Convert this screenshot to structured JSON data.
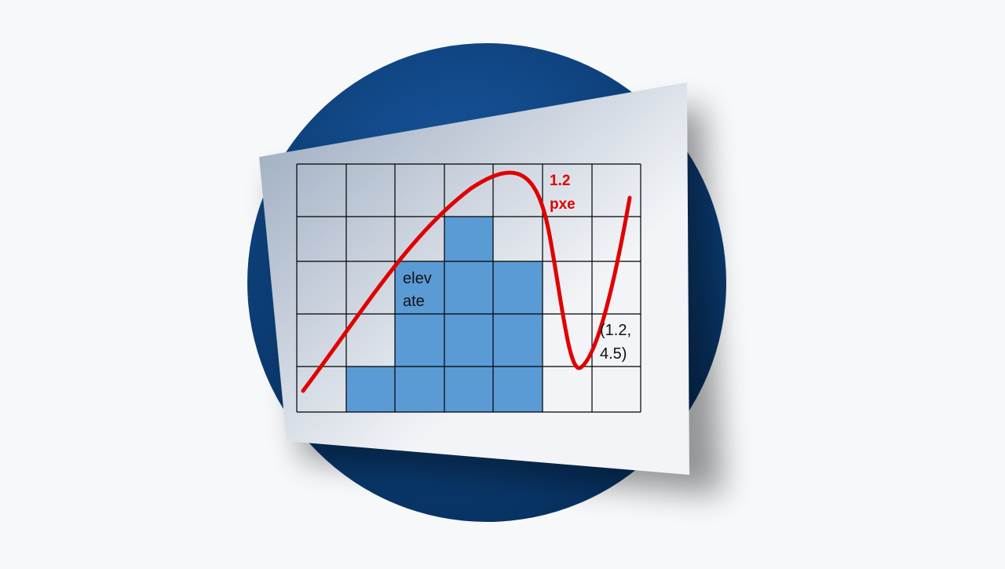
{
  "labels": {
    "curve_label_line1": "1.2",
    "curve_label_line2": "pxe",
    "bars_label_line1": "elev",
    "bars_label_line2": "ate",
    "point_label_line1": "(1.2,",
    "point_label_line2": "4.5)"
  },
  "colors": {
    "background": "#f6f8fa",
    "circle_light": "#1a5aa6",
    "circle_dark": "#06305e",
    "sheet_light": "#f2f4f7",
    "sheet_dark": "#97a7bd",
    "grid_line": "#000000",
    "bar_fill": "#5b9bd5",
    "curve": "#e00000",
    "curve_label": "#e00000",
    "text": "#111111"
  },
  "grid": {
    "columns": 7,
    "rows": 5
  },
  "chart_data": {
    "type": "bar",
    "bar_heights_in_cells": [
      0,
      1,
      3,
      4,
      3,
      0,
      0
    ]
  }
}
